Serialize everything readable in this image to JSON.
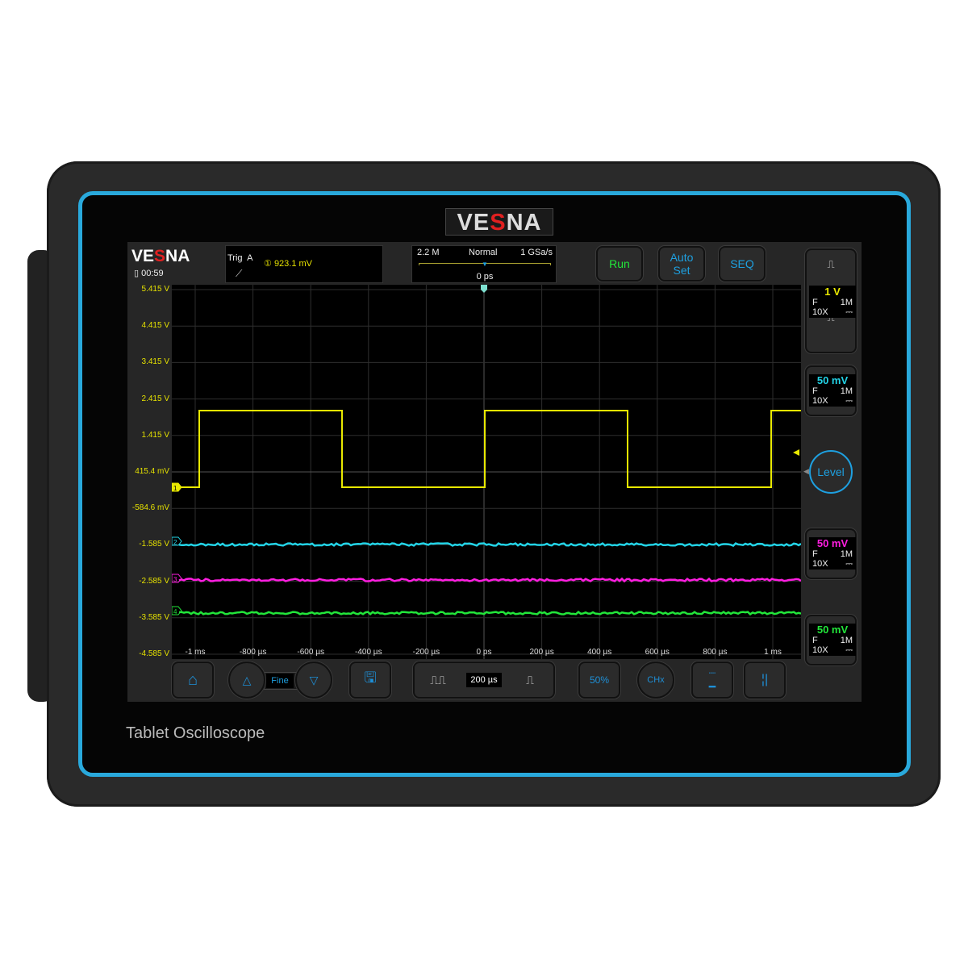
{
  "brand": "VESNA",
  "tagline": "Tablet Oscilloscope",
  "status": {
    "battery_icon": "battery-icon",
    "time": "00:59"
  },
  "trigger": {
    "label": "Trig",
    "source": "A",
    "channel": "1",
    "level": "923.1  mV",
    "edge_icon": "rising-edge-icon"
  },
  "acquisition": {
    "memory": "2.2 M",
    "mode": "Normal",
    "sample_rate": "1 GSa/s",
    "position": "0 ps"
  },
  "buttons": {
    "run": "Run",
    "auto_set_1": "Auto",
    "auto_set_2": "Set",
    "seq": "SEQ",
    "level": "Level",
    "fine": "Fine",
    "timebase": "200 µs",
    "fifty": "50%",
    "chx": "CHx"
  },
  "y_labels": [
    "5.415 V",
    "4.415 V",
    "3.415 V",
    "2.415 V",
    "1.415 V",
    "415.4 mV",
    "-584.6 mV",
    "-1.585 V",
    "-2.585 V",
    "-3.585 V",
    "-4.585 V"
  ],
  "x_labels": [
    "-1 ms",
    "-800 µs",
    "-600 µs",
    "-400 µs",
    "-200 µs",
    "0 ps",
    "200 µs",
    "400 µs",
    "600 µs",
    "800 µs",
    "1 ms"
  ],
  "channels": [
    {
      "id": "1",
      "scale": "1 V",
      "coupling": "F",
      "impedance": "1M",
      "probe": "10X",
      "color": "#e8e800"
    },
    {
      "id": "2",
      "scale": "50 mV",
      "coupling": "F",
      "impedance": "1M",
      "probe": "10X",
      "color": "#22d3e6"
    },
    {
      "id": "3",
      "scale": "50 mV",
      "coupling": "F",
      "impedance": "1M",
      "probe": "10X",
      "color": "#ff1ee0"
    },
    {
      "id": "4",
      "scale": "50 mV",
      "coupling": "F",
      "impedance": "1M",
      "probe": "10X",
      "color": "#22e63a"
    }
  ],
  "colors": {
    "accent": "#29a9dc",
    "run": "#22e63a",
    "button_text": "#1ea0e0"
  }
}
